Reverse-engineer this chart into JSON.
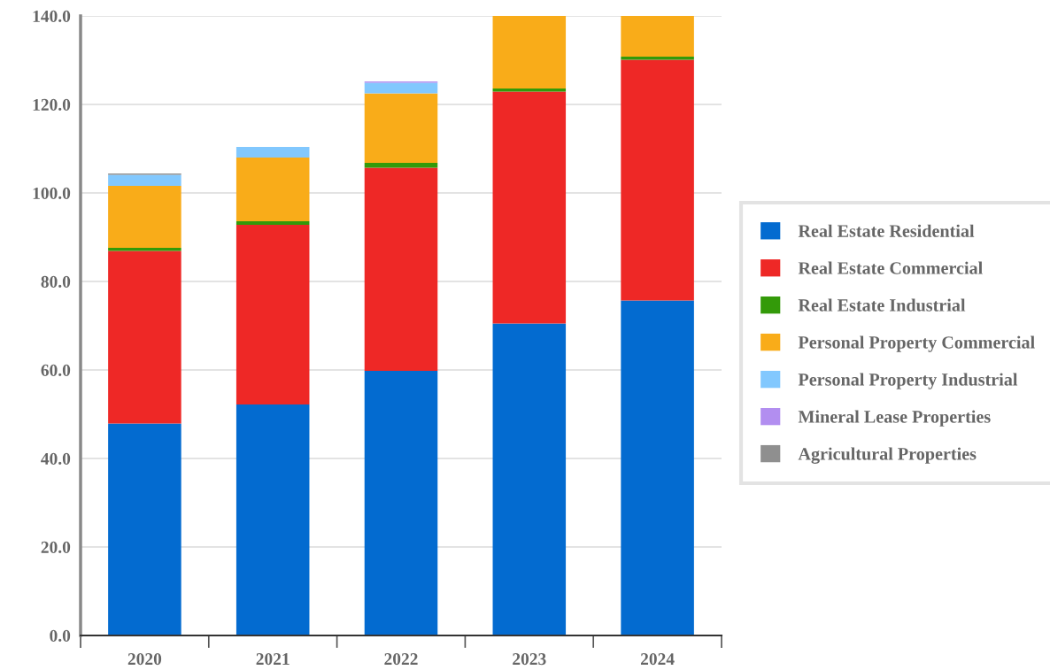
{
  "chart_data": {
    "type": "bar",
    "stacked": true,
    "categories": [
      "2020",
      "2021",
      "2022",
      "2023",
      "2024"
    ],
    "ylim": [
      0,
      140
    ],
    "yticks": [
      {
        "value": 0,
        "label": "0.0"
      },
      {
        "value": 20,
        "label": "20.0"
      },
      {
        "value": 40,
        "label": "40.0"
      },
      {
        "value": 60,
        "label": "60.0"
      },
      {
        "value": 80,
        "label": "80.0"
      },
      {
        "value": 100,
        "label": "100.0"
      },
      {
        "value": 120,
        "label": "120.0"
      },
      {
        "value": 140,
        "label": "140.0"
      }
    ],
    "grid": "y",
    "legend": "right",
    "series": [
      {
        "name": "Real Estate Residential",
        "color": "#036bd0",
        "values": [
          47.9,
          52.2,
          59.8,
          70.5,
          75.7
        ]
      },
      {
        "name": "Real Estate Commercial",
        "color": "#ee2826",
        "values": [
          39.0,
          40.6,
          45.9,
          52.4,
          54.4
        ]
      },
      {
        "name": "Real Estate Industrial",
        "color": "#339a09",
        "values": [
          0.7,
          0.8,
          1.1,
          0.7,
          0.7
        ]
      },
      {
        "name": "Personal Property Commercial",
        "color": "#f9ac19",
        "values": [
          14.0,
          14.4,
          15.7,
          16.4,
          9.2
        ]
      },
      {
        "name": "Personal Property Industrial",
        "color": "#82c8fe",
        "values": [
          2.5,
          2.4,
          2.4,
          null,
          null
        ]
      },
      {
        "name": "Mineral Lease Properties",
        "color": "#b28ef0",
        "values": [
          null,
          null,
          0.3,
          null,
          null
        ]
      },
      {
        "name": "Agricultural Properties",
        "color": "#8f8f8f",
        "values": [
          0.3,
          null,
          null,
          null,
          null
        ]
      }
    ]
  }
}
